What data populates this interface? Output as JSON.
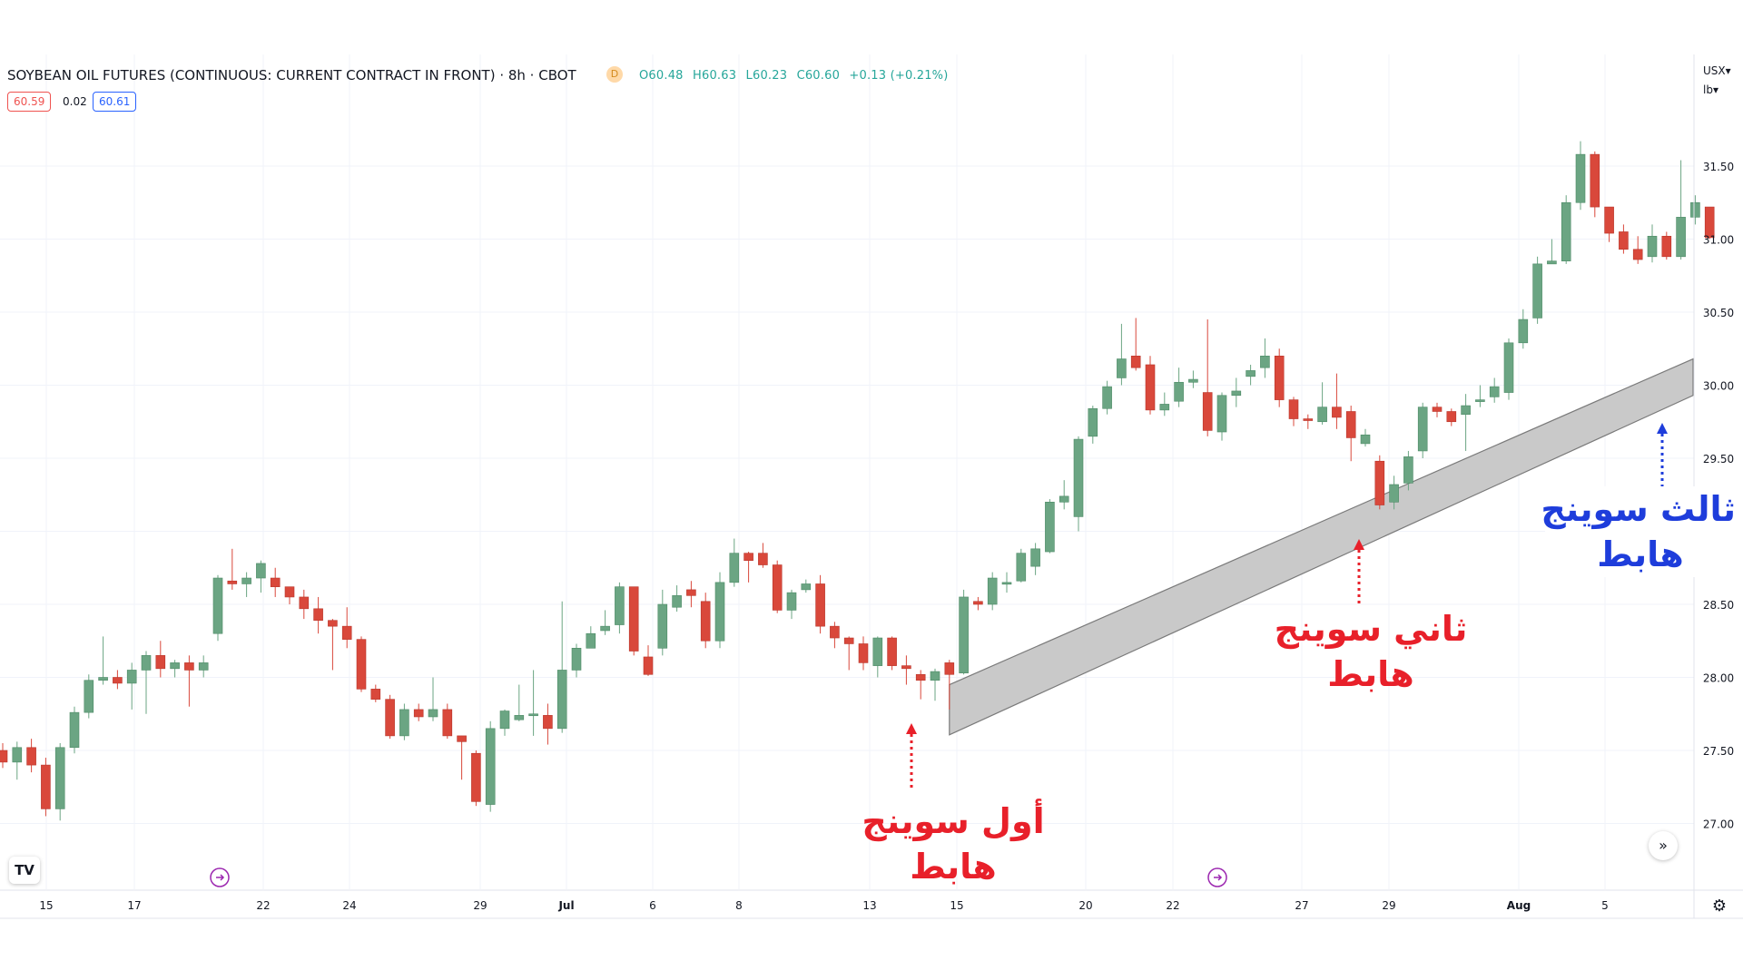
{
  "header": {
    "title": "SOYBEAN OIL FUTURES (CONTINUOUS: CURRENT CONTRACT IN FRONT) · 8h · CBOT",
    "badge": "D",
    "ohlc": {
      "o": "O60.48",
      "h": "H60.63",
      "l": "L60.23",
      "c": "C60.60",
      "chg": "+0.13 (+0.21%)"
    },
    "bid": "60.59",
    "spread": "0.02",
    "ask": "60.61",
    "currency_menu": "USX▾",
    "unit_menu": "lb▾"
  },
  "colors": {
    "up": "#6ba583",
    "down": "#d9483b",
    "channel": "#c9c9c9",
    "annotation_red": "#e8202a",
    "annotation_blue": "#1e3ddb"
  },
  "icons": {
    "logo": "tradingview-logo-icon",
    "scroll": "double-chevron-right-icon",
    "settings": "gear-icon",
    "event": "event-marker-icon"
  },
  "annotations": {
    "first": {
      "line1": "أول سوينج",
      "line2": "هابط"
    },
    "second": {
      "line1": "ثاني سوينج",
      "line2": "هابط"
    },
    "third": {
      "line1": "ثالث سوينج",
      "line2": "هابط"
    }
  },
  "chart_data": {
    "type": "candlestick",
    "title": "SOYBEAN OIL FUTURES (CONTINUOUS: CURRENT CONTRACT IN FRONT) · 8h · CBOT",
    "y_ticks": [
      "31.50",
      "31.00",
      "30.50",
      "30.00",
      "29.50",
      "29.00",
      "28.50",
      "28.00",
      "27.50",
      "27.00"
    ],
    "x_ticks": [
      "15",
      "17",
      "22",
      "24",
      "29",
      "Jul",
      "6",
      "8",
      "13",
      "15",
      "20",
      "22",
      "27",
      "29",
      "Aug",
      "5"
    ],
    "ylim": [
      26.6,
      32.2
    ],
    "grid": true,
    "candles": [
      [
        27.5,
        27.42,
        27.55,
        27.38
      ],
      [
        27.42,
        27.52,
        27.56,
        27.3
      ],
      [
        27.52,
        27.4,
        27.58,
        27.35
      ],
      [
        27.4,
        27.1,
        27.45,
        27.05
      ],
      [
        27.1,
        27.52,
        27.55,
        27.02
      ],
      [
        27.52,
        27.76,
        27.8,
        27.48
      ],
      [
        27.76,
        27.98,
        28.02,
        27.72
      ],
      [
        27.98,
        28.0,
        28.28,
        27.95
      ],
      [
        28.0,
        27.96,
        28.05,
        27.92
      ],
      [
        27.96,
        28.05,
        28.1,
        27.78
      ],
      [
        28.05,
        28.15,
        28.18,
        27.75
      ],
      [
        28.15,
        28.06,
        28.25,
        28.0
      ],
      [
        28.06,
        28.1,
        28.12,
        28.0
      ],
      [
        28.1,
        28.05,
        28.15,
        27.8
      ],
      [
        28.05,
        28.1,
        28.15,
        28.0
      ],
      [
        28.3,
        28.68,
        28.7,
        28.25
      ],
      [
        28.66,
        28.64,
        28.88,
        28.6
      ],
      [
        28.64,
        28.68,
        28.72,
        28.55
      ],
      [
        28.68,
        28.78,
        28.8,
        28.58
      ],
      [
        28.68,
        28.62,
        28.75,
        28.55
      ],
      [
        28.62,
        28.55,
        28.62,
        28.5
      ],
      [
        28.55,
        28.47,
        28.6,
        28.4
      ],
      [
        28.47,
        28.39,
        28.55,
        28.3
      ],
      [
        28.39,
        28.35,
        28.4,
        28.05
      ],
      [
        28.35,
        28.26,
        28.48,
        28.2
      ],
      [
        28.26,
        27.92,
        28.28,
        27.9
      ],
      [
        27.92,
        27.85,
        27.95,
        27.83
      ],
      [
        27.85,
        27.6,
        27.88,
        27.58
      ],
      [
        27.6,
        27.78,
        27.82,
        27.57
      ],
      [
        27.78,
        27.73,
        27.82,
        27.7
      ],
      [
        27.73,
        27.78,
        28.0,
        27.7
      ],
      [
        27.78,
        27.6,
        27.82,
        27.58
      ],
      [
        27.6,
        27.56,
        27.6,
        27.3
      ],
      [
        27.48,
        27.15,
        27.5,
        27.12
      ],
      [
        27.13,
        27.65,
        27.7,
        27.08
      ],
      [
        27.65,
        27.77,
        27.78,
        27.6
      ],
      [
        27.71,
        27.74,
        27.95,
        27.7
      ],
      [
        27.74,
        27.75,
        28.05,
        27.6
      ],
      [
        27.74,
        27.65,
        27.82,
        27.54
      ],
      [
        27.65,
        28.05,
        28.52,
        27.62
      ],
      [
        28.05,
        28.2,
        28.23,
        28.0
      ],
      [
        28.2,
        28.3,
        28.35,
        28.2
      ],
      [
        28.32,
        28.35,
        28.46,
        28.29
      ],
      [
        28.36,
        28.62,
        28.65,
        28.3
      ],
      [
        28.62,
        28.18,
        28.62,
        28.15
      ],
      [
        28.14,
        28.02,
        28.22,
        28.01
      ],
      [
        28.2,
        28.5,
        28.6,
        28.15
      ],
      [
        28.48,
        28.56,
        28.63,
        28.45
      ],
      [
        28.6,
        28.56,
        28.66,
        28.48
      ],
      [
        28.52,
        28.25,
        28.58,
        28.2
      ],
      [
        28.25,
        28.65,
        28.72,
        28.2
      ],
      [
        28.65,
        28.85,
        28.95,
        28.62
      ],
      [
        28.85,
        28.8,
        28.86,
        28.65
      ],
      [
        28.85,
        28.77,
        28.92,
        28.75
      ],
      [
        28.77,
        28.46,
        28.8,
        28.44
      ],
      [
        28.46,
        28.58,
        28.6,
        28.4
      ],
      [
        28.6,
        28.64,
        28.67,
        28.58
      ],
      [
        28.64,
        28.35,
        28.7,
        28.3
      ],
      [
        28.35,
        28.27,
        28.38,
        28.2
      ],
      [
        28.27,
        28.23,
        28.28,
        28.05
      ],
      [
        28.23,
        28.1,
        28.28,
        28.05
      ],
      [
        28.08,
        28.27,
        28.28,
        28.0
      ],
      [
        28.27,
        28.08,
        28.28,
        28.05
      ],
      [
        28.08,
        28.06,
        28.15,
        27.95
      ],
      [
        28.02,
        27.98,
        28.05,
        27.85
      ],
      [
        27.98,
        28.04,
        28.06,
        27.84
      ],
      [
        28.1,
        28.02,
        28.12,
        27.78
      ],
      [
        28.03,
        28.55,
        28.6,
        28.02
      ],
      [
        28.52,
        28.5,
        28.55,
        28.46
      ],
      [
        28.5,
        28.68,
        28.72,
        28.46
      ],
      [
        28.65,
        28.65,
        28.72,
        28.58
      ],
      [
        28.66,
        28.85,
        28.88,
        28.65
      ],
      [
        28.76,
        28.88,
        28.92,
        28.7
      ],
      [
        28.86,
        29.2,
        29.22,
        28.85
      ],
      [
        29.2,
        29.24,
        29.35,
        29.15
      ],
      [
        29.1,
        29.63,
        29.65,
        29.0
      ],
      [
        29.65,
        29.84,
        29.86,
        29.6
      ],
      [
        29.84,
        29.99,
        30.03,
        29.8
      ],
      [
        30.05,
        30.18,
        30.42,
        30.0
      ],
      [
        30.2,
        30.12,
        30.46,
        30.1
      ],
      [
        30.14,
        29.83,
        30.2,
        29.8
      ],
      [
        29.83,
        29.87,
        29.95,
        29.79
      ],
      [
        29.89,
        30.02,
        30.12,
        29.85
      ],
      [
        30.02,
        30.04,
        30.1,
        29.98
      ],
      [
        29.95,
        29.69,
        30.45,
        29.65
      ],
      [
        29.68,
        29.93,
        29.95,
        29.62
      ],
      [
        29.93,
        29.96,
        30.05,
        29.85
      ],
      [
        30.06,
        30.1,
        30.14,
        30.0
      ],
      [
        30.12,
        30.2,
        30.32,
        30.05
      ],
      [
        30.2,
        29.9,
        30.25,
        29.85
      ],
      [
        29.9,
        29.77,
        29.92,
        29.72
      ],
      [
        29.77,
        29.76,
        29.8,
        29.7
      ],
      [
        29.75,
        29.85,
        30.02,
        29.73
      ],
      [
        29.85,
        29.78,
        30.08,
        29.7
      ],
      [
        29.82,
        29.64,
        29.86,
        29.48
      ],
      [
        29.6,
        29.66,
        29.7,
        29.58
      ],
      [
        29.48,
        29.18,
        29.52,
        29.15
      ],
      [
        29.2,
        29.32,
        29.38,
        29.15
      ],
      [
        29.33,
        29.51,
        29.55,
        29.28
      ],
      [
        29.55,
        29.85,
        29.88,
        29.5
      ],
      [
        29.85,
        29.82,
        29.88,
        29.78
      ],
      [
        29.82,
        29.75,
        29.84,
        29.72
      ],
      [
        29.8,
        29.86,
        29.94,
        29.55
      ],
      [
        29.9,
        29.9,
        30.0,
        29.85
      ],
      [
        29.92,
        29.99,
        30.05,
        29.88
      ],
      [
        29.95,
        30.29,
        30.32,
        29.9
      ],
      [
        30.29,
        30.45,
        30.52,
        30.25
      ],
      [
        30.46,
        30.83,
        30.88,
        30.42
      ],
      [
        30.83,
        30.85,
        31.0,
        30.83
      ],
      [
        30.85,
        31.25,
        31.3,
        30.83
      ],
      [
        31.25,
        31.58,
        31.67,
        31.2
      ],
      [
        31.58,
        31.22,
        31.6,
        31.15
      ],
      [
        31.22,
        31.04,
        31.22,
        30.98
      ],
      [
        31.05,
        30.93,
        31.1,
        30.9
      ],
      [
        30.93,
        30.86,
        31.02,
        30.83
      ],
      [
        30.88,
        31.02,
        31.1,
        30.84
      ],
      [
        31.02,
        30.88,
        31.05,
        30.86
      ],
      [
        30.88,
        31.15,
        31.54,
        30.86
      ],
      [
        31.15,
        31.25,
        31.3,
        31.1
      ],
      [
        31.22,
        31.01,
        31.2,
        31.0
      ]
    ],
    "channel": {
      "start_x_idx": 66,
      "start_hi": 27.95,
      "start_lo": 27.7,
      "end_x_idx": 118,
      "end_hi": 30.18,
      "end_lo": 29.93
    },
    "annotations": [
      "أول سوينج هابط",
      "ثاني سوينج هابط",
      "ثالث سوينج هابط"
    ]
  }
}
